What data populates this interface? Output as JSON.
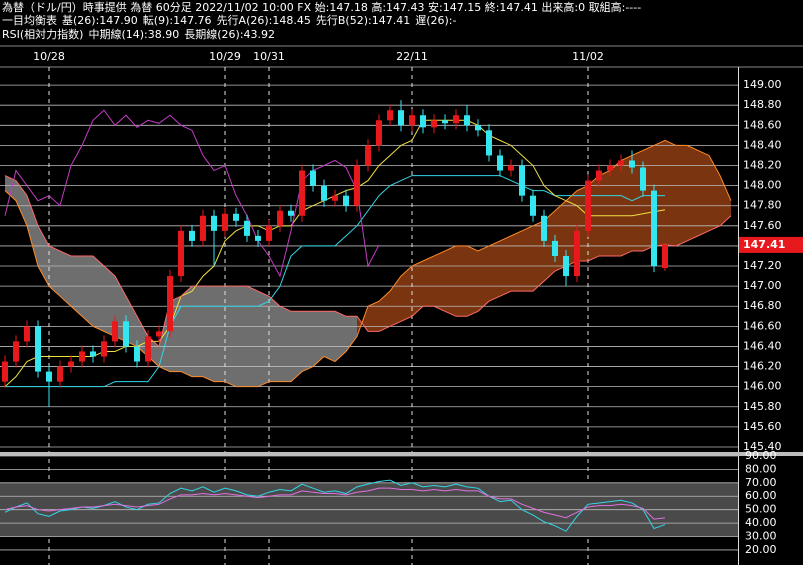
{
  "chart_data": [
    {
      "type": "candlestick",
      "title": "為替（ドル/円）時事提供 為替 60分足 2022/11/02 10:00 FX 始:147.18 高:147.43 安:147.15 終:147.41 出来高:0 取組高:----",
      "indicator": "一目均衡表",
      "x": [
        null,
        null,
        null,
        null,
        "10/28",
        null,
        null,
        null,
        null,
        null,
        null,
        null,
        null,
        null,
        null,
        null,
        null,
        null,
        null,
        null,
        "10/29",
        null,
        null,
        null,
        "10/31",
        null,
        null,
        null,
        null,
        null,
        null,
        null,
        null,
        null,
        null,
        null,
        null,
        "22/11",
        null,
        null,
        null,
        null,
        null,
        null,
        null,
        null,
        null,
        null,
        null,
        null,
        null,
        null,
        null,
        "11/02",
        null,
        null,
        null,
        null,
        null,
        null,
        null,
        null,
        null,
        null,
        null,
        null,
        null
      ],
      "open": [
        146.05,
        146.25,
        146.45,
        146.6,
        146.15,
        146.05,
        146.2,
        146.25,
        146.35,
        146.3,
        146.45,
        146.65,
        146.4,
        146.25,
        146.5,
        146.55,
        147.1,
        147.55,
        147.45,
        147.7,
        147.55,
        147.72,
        147.65,
        147.5,
        147.45,
        147.6,
        147.75,
        147.7,
        148.15,
        148.0,
        147.85,
        147.9,
        147.8,
        148.2,
        148.4,
        148.65,
        148.75,
        148.6,
        148.7,
        148.58,
        148.65,
        148.62,
        148.7,
        148.6,
        148.55,
        148.3,
        148.15,
        148.2,
        147.9,
        147.7,
        147.45,
        147.3,
        147.1,
        147.55,
        148.05,
        148.15,
        148.2,
        148.25,
        148.18,
        147.95,
        147.18,
        null,
        null,
        null,
        null,
        null,
        null
      ],
      "high": [
        146.31,
        146.51,
        146.66,
        146.66,
        146.21,
        146.26,
        146.31,
        146.41,
        146.41,
        146.51,
        146.71,
        146.71,
        146.46,
        146.56,
        146.61,
        147.16,
        147.61,
        147.61,
        147.76,
        147.76,
        147.78,
        147.78,
        147.71,
        147.56,
        147.66,
        147.81,
        147.81,
        148.21,
        148.21,
        148.06,
        147.96,
        147.96,
        148.26,
        148.46,
        148.71,
        148.81,
        148.85,
        148.76,
        148.76,
        148.71,
        148.71,
        148.76,
        148.8,
        148.66,
        148.61,
        148.36,
        148.26,
        148.26,
        147.96,
        147.76,
        147.51,
        147.36,
        147.61,
        148.11,
        148.21,
        148.26,
        148.31,
        148.35,
        148.24,
        148.01,
        147.43,
        null,
        null,
        null,
        null,
        null,
        null
      ],
      "low": [
        145.99,
        146.19,
        146.39,
        146.09,
        145.8,
        145.99,
        146.14,
        146.19,
        146.24,
        146.24,
        146.39,
        146.34,
        146.19,
        146.19,
        146.44,
        146.49,
        147.04,
        147.39,
        147.39,
        147.2,
        147.49,
        147.59,
        147.44,
        147.39,
        147.39,
        147.54,
        147.64,
        147.64,
        147.94,
        147.79,
        147.79,
        147.74,
        147.74,
        148.14,
        148.34,
        148.59,
        148.54,
        148.54,
        148.52,
        148.52,
        148.56,
        148.56,
        148.54,
        148.49,
        148.24,
        148.09,
        148.09,
        147.84,
        147.64,
        147.39,
        147.24,
        147.0,
        147.04,
        147.49,
        147.99,
        148.09,
        148.14,
        148.12,
        147.89,
        147.14,
        147.15,
        null,
        null,
        null,
        null,
        null,
        null
      ],
      "close": [
        146.25,
        146.45,
        146.6,
        146.15,
        146.05,
        146.2,
        146.25,
        146.35,
        146.3,
        146.45,
        146.65,
        146.4,
        146.25,
        146.5,
        146.55,
        147.1,
        147.55,
        147.45,
        147.7,
        147.55,
        147.72,
        147.65,
        147.5,
        147.45,
        147.6,
        147.75,
        147.7,
        148.15,
        148.0,
        147.85,
        147.9,
        147.8,
        148.2,
        148.4,
        148.65,
        148.75,
        148.6,
        148.7,
        148.58,
        148.65,
        148.62,
        148.7,
        148.6,
        148.55,
        148.3,
        148.15,
        148.2,
        147.9,
        147.7,
        147.45,
        147.3,
        147.1,
        147.55,
        148.05,
        148.15,
        148.2,
        148.25,
        148.18,
        147.95,
        147.2,
        147.41,
        null,
        null,
        null,
        null,
        null,
        null
      ],
      "up_color": "#e8191c",
      "down_color": "#33e6f0",
      "cloud_up_color": "#7a3410",
      "cloud_down_color": "#6e6e6e",
      "series": [
        {
          "name": "基(26):147.90",
          "color": "#33d6e8",
          "values": [
            146.0,
            146.0,
            146.0,
            146.0,
            146.0,
            146.0,
            146.0,
            146.0,
            146.0,
            146.0,
            146.05,
            146.05,
            146.05,
            146.05,
            146.2,
            146.6,
            146.8,
            146.8,
            146.8,
            146.8,
            146.8,
            146.8,
            146.8,
            146.8,
            146.85,
            147.0,
            147.3,
            147.4,
            147.4,
            147.4,
            147.4,
            147.5,
            147.6,
            147.75,
            147.9,
            148.0,
            148.05,
            148.1,
            148.1,
            148.1,
            148.1,
            148.1,
            148.1,
            148.1,
            148.1,
            148.1,
            148.05,
            148.0,
            147.95,
            147.95,
            147.9,
            147.9,
            147.9,
            147.9,
            147.9,
            147.9,
            147.9,
            147.85,
            147.9,
            147.9,
            147.9,
            null,
            null,
            null,
            null,
            null,
            null
          ]
        },
        {
          "name": "転(9):147.76",
          "color": "#f0e040",
          "values": [
            146.0,
            146.1,
            146.25,
            146.3,
            146.3,
            146.3,
            146.3,
            146.3,
            146.3,
            146.35,
            146.35,
            146.4,
            146.4,
            146.45,
            146.45,
            146.6,
            146.9,
            146.95,
            147.1,
            147.2,
            147.45,
            147.55,
            147.6,
            147.6,
            147.55,
            147.6,
            147.6,
            147.75,
            147.8,
            147.85,
            147.9,
            147.95,
            147.98,
            148.05,
            148.2,
            148.3,
            148.4,
            148.45,
            148.65,
            148.65,
            148.65,
            148.65,
            148.65,
            148.6,
            148.5,
            148.45,
            148.4,
            148.3,
            148.2,
            148.0,
            147.9,
            147.85,
            147.8,
            147.7,
            147.7,
            147.7,
            147.7,
            147.7,
            147.72,
            147.74,
            147.76,
            null,
            null,
            null,
            null,
            null,
            null
          ]
        },
        {
          "name": "先行A(26):148.45",
          "color": "#ff8a2a",
          "values": [
            147.95,
            147.85,
            147.6,
            147.2,
            147.0,
            146.9,
            146.8,
            146.7,
            146.6,
            146.55,
            146.5,
            146.45,
            146.4,
            146.3,
            146.2,
            146.15,
            146.15,
            146.1,
            146.1,
            146.05,
            146.05,
            146.0,
            146.0,
            146.0,
            146.05,
            146.05,
            146.05,
            146.15,
            146.2,
            146.3,
            146.25,
            146.35,
            146.5,
            146.8,
            146.85,
            146.95,
            147.1,
            147.2,
            147.25,
            147.3,
            147.35,
            147.4,
            147.4,
            147.35,
            147.4,
            147.45,
            147.5,
            147.55,
            147.6,
            147.65,
            147.75,
            147.85,
            147.95,
            148.0,
            148.1,
            148.15,
            148.25,
            148.3,
            148.35,
            148.4,
            148.45,
            148.4,
            148.4,
            148.35,
            148.3,
            148.1,
            147.85
          ]
        },
        {
          "name": "先行B(52):147.41",
          "color": "#ff6a6a",
          "values": [
            148.1,
            148.05,
            147.9,
            147.6,
            147.4,
            147.35,
            147.3,
            147.3,
            147.3,
            147.2,
            147.1,
            146.9,
            146.7,
            146.5,
            146.4,
            146.85,
            146.9,
            147.0,
            147.0,
            147.0,
            147.0,
            147.0,
            147.0,
            146.95,
            146.9,
            146.8,
            146.75,
            146.75,
            146.75,
            146.75,
            146.75,
            146.7,
            146.7,
            146.55,
            146.55,
            146.6,
            146.65,
            146.7,
            146.8,
            146.8,
            146.75,
            146.7,
            146.7,
            146.75,
            146.85,
            146.9,
            146.95,
            146.95,
            146.95,
            147.05,
            147.15,
            147.2,
            147.25,
            147.25,
            147.3,
            147.3,
            147.3,
            147.35,
            147.35,
            147.4,
            147.41,
            147.4,
            147.45,
            147.5,
            147.55,
            147.6,
            147.7
          ]
        },
        {
          "name": "遅(26):-",
          "color": "#c43cc4",
          "values": [
            147.7,
            148.15,
            148.0,
            147.85,
            147.9,
            147.8,
            148.2,
            148.4,
            148.65,
            148.75,
            148.6,
            148.7,
            148.58,
            148.65,
            148.62,
            148.7,
            148.6,
            148.55,
            148.3,
            148.15,
            148.2,
            147.9,
            147.7,
            147.45,
            147.3,
            147.1,
            147.55,
            148.05,
            148.15,
            148.2,
            148.25,
            148.18,
            147.95,
            147.2,
            147.41,
            null,
            null,
            null,
            null,
            null,
            null,
            null,
            null,
            null,
            null,
            null,
            null,
            null,
            null,
            null,
            null,
            null,
            null,
            null,
            null,
            null,
            null,
            null,
            null,
            null,
            null,
            null,
            null,
            null,
            null,
            null,
            null
          ]
        }
      ],
      "ylim": [
        145.35,
        149.18
      ],
      "yticks": [
        {
          "value": 149.0,
          "label": "149.00"
        },
        {
          "value": 148.8,
          "label": "148.80"
        },
        {
          "value": 148.6,
          "label": "148.60"
        },
        {
          "value": 148.4,
          "label": "148.40"
        },
        {
          "value": 148.2,
          "label": "148.20"
        },
        {
          "value": 148.0,
          "label": "148.00"
        },
        {
          "value": 147.8,
          "label": "147.80"
        },
        {
          "value": 147.6,
          "label": "147.60"
        },
        {
          "value": 147.4,
          "label": "147.40"
        },
        {
          "value": 147.2,
          "label": "147.20"
        },
        {
          "value": 147.0,
          "label": "147.00"
        },
        {
          "value": 146.8,
          "label": "146.80"
        },
        {
          "value": 146.6,
          "label": "146.60"
        },
        {
          "value": 146.4,
          "label": "146.40"
        },
        {
          "value": 146.2,
          "label": "146.20"
        },
        {
          "value": 146.0,
          "label": "146.00"
        },
        {
          "value": 145.8,
          "label": "145.80"
        },
        {
          "value": 145.6,
          "label": "145.60"
        },
        {
          "value": 145.4,
          "label": "145.40"
        }
      ],
      "last_price": {
        "value": 147.41,
        "label": "147.41"
      },
      "grid": true
    },
    {
      "type": "line",
      "title": "RSI(相対力指数)",
      "series": [
        {
          "name": "中期線(14):38.90",
          "color": "#33d6e8",
          "values": [
            48,
            52,
            55,
            47,
            45,
            49,
            50,
            52,
            51,
            53,
            56,
            52,
            50,
            54,
            55,
            62,
            66,
            64,
            67,
            63,
            66,
            64,
            61,
            60,
            63,
            65,
            64,
            69,
            66,
            63,
            64,
            62,
            67,
            69,
            71,
            72,
            68,
            70,
            67,
            68,
            67,
            69,
            67,
            66,
            60,
            56,
            57,
            50,
            46,
            41,
            38,
            34,
            45,
            54,
            55,
            56,
            57,
            55,
            50,
            36,
            38.9
          ]
        },
        {
          "name": "長期線(26):43.92",
          "color": "#e070e0",
          "values": [
            50,
            52,
            53,
            50,
            49,
            50,
            51,
            52,
            52,
            53,
            54,
            53,
            52,
            53,
            54,
            58,
            61,
            61,
            62,
            61,
            62,
            61,
            60,
            59,
            60,
            61,
            61,
            64,
            63,
            62,
            62,
            61,
            63,
            64,
            66,
            66,
            65,
            65,
            64,
            65,
            64,
            65,
            64,
            64,
            60,
            58,
            58,
            54,
            51,
            48,
            46,
            44,
            48,
            52,
            53,
            53,
            54,
            53,
            51,
            43,
            43.92
          ]
        }
      ],
      "band": [
        30,
        70
      ],
      "ylim": [
        8.8,
        90.7
      ],
      "yticks": [
        {
          "value": 90,
          "label": "90.00"
        },
        {
          "value": 80,
          "label": "80.00"
        },
        {
          "value": 70,
          "label": "70.00"
        },
        {
          "value": 60,
          "label": "60.00"
        },
        {
          "value": 50,
          "label": "50.00"
        },
        {
          "value": 40,
          "label": "40.00"
        },
        {
          "value": 30,
          "label": "30.00"
        },
        {
          "value": 20,
          "label": "20.00"
        }
      ],
      "grid": true
    }
  ]
}
